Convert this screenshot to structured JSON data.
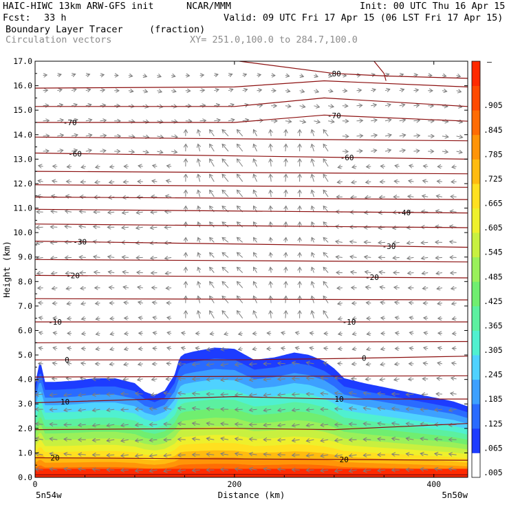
{
  "header": {
    "title": "HAIC-HIWC 13km ARW-GFS init",
    "org": "NCAR/MMM",
    "init": "Init: 00 UTC Thu 16 Apr 15",
    "fcst_label": "Fcst:",
    "fcst_value": "33 h",
    "valid": "Valid: 09 UTC Fri 17 Apr 15 (06 LST Fri 17 Apr 15)",
    "field_name": "Boundary Layer Tracer",
    "field_units": "(fraction)",
    "overlay_name": "Circulation vectors",
    "section": "XY= 251.0,100.0 to 284.7,100.0"
  },
  "colors": {
    "contour": "#8b0e0e",
    "vector": "#7d7d7d",
    "fill_base": "#ff1a00"
  },
  "chart_data": {
    "type": "heatmap",
    "title": "Boundary Layer Tracer",
    "xlabel": "Distance (km)",
    "ylabel": "Height (km)",
    "xlim": [
      0,
      434
    ],
    "ylim": [
      0,
      17
    ],
    "x_ticks": [
      0,
      200,
      400
    ],
    "y_ticks": [
      "0.0",
      "1.0",
      "2.0",
      "3.0",
      "4.0",
      "5.0",
      "6.0",
      "7.0",
      "8.0",
      "9.0",
      "10.0",
      "11.0",
      "12.0",
      "13.0",
      "14.0",
      "15.0",
      "16.0",
      "17.0"
    ],
    "x_endpoint_labels": {
      "left": "5n54w",
      "right": "5n50w"
    },
    "colorbar": {
      "labels": [
        ".005",
        ".065",
        ".125",
        ".185",
        ".245",
        ".305",
        ".365",
        ".425",
        ".485",
        ".545",
        ".605",
        ".665",
        ".725",
        ".785",
        ".845",
        ".905"
      ],
      "top_label": "–",
      "colors": [
        "#ffffff",
        "#1d3cff",
        "#2a6bff",
        "#3da0ff",
        "#4fd2ff",
        "#50f0d0",
        "#5cf0a0",
        "#70ee70",
        "#9af05a",
        "#c8f040",
        "#eef02c",
        "#ffe020",
        "#ffbb10",
        "#ff9408",
        "#ff6c04",
        "#ff4a00",
        "#ff2a00"
      ]
    },
    "tracer_top_km": {
      "x": [
        0,
        5,
        10,
        20,
        40,
        60,
        80,
        100,
        110,
        120,
        130,
        140,
        145,
        150,
        160,
        180,
        200,
        220,
        240,
        260,
        275,
        290,
        300,
        310,
        330,
        360,
        390,
        420,
        434
      ],
      "y": [
        3.8,
        4.8,
        3.9,
        3.9,
        3.95,
        4.05,
        4.05,
        3.85,
        3.5,
        3.35,
        3.55,
        4.2,
        4.9,
        5.05,
        5.15,
        5.3,
        5.25,
        4.8,
        4.9,
        5.1,
        5.0,
        4.75,
        4.45,
        4.05,
        3.85,
        3.6,
        3.35,
        3.1,
        2.9
      ]
    },
    "temperature_contours": [
      {
        "label": "20",
        "label_x": [
          20,
          310
        ],
        "x": [
          0,
          434
        ],
        "y": [
          0.8,
          0.7
        ]
      },
      {
        "label": "10",
        "label_x": [
          30,
          305
        ],
        "x": [
          0,
          120,
          200,
          300,
          434
        ],
        "y": [
          3.05,
          3.2,
          3.3,
          3.2,
          3.2
        ]
      },
      {
        "label": "0",
        "label_x": [
          32,
          330
        ],
        "x": [
          0,
          200,
          300,
          434
        ],
        "y": [
          4.8,
          4.8,
          4.85,
          4.95
        ]
      },
      {
        "label": "-10",
        "label_x": [
          20,
          315
        ],
        "x": [
          0,
          434
        ],
        "y": [
          6.35,
          6.35
        ]
      },
      {
        "label": "-20",
        "label_x": [
          38,
          338
        ],
        "x": [
          0,
          434
        ],
        "y": [
          8.25,
          8.15
        ]
      },
      {
        "label": "-30",
        "label_x": [
          45,
          355
        ],
        "x": [
          0,
          434
        ],
        "y": [
          9.65,
          9.4
        ]
      },
      {
        "label": "-40",
        "label_x": [
          370
        ],
        "x": [
          0,
          434
        ],
        "y": [
          10.95,
          10.8
        ]
      },
      {
        "label": "-60",
        "label_x": [
          40,
          313
        ],
        "x": [
          0,
          434
        ],
        "y": [
          13.25,
          13.0
        ]
      },
      {
        "label": "-70",
        "label_x": [
          35,
          300
        ],
        "x": [
          0,
          200,
          290,
          434
        ],
        "y": [
          14.5,
          14.5,
          14.8,
          14.55
        ]
      },
      {
        "label": "-80",
        "label_x": [
          300
        ],
        "x": [
          205,
          300,
          350,
          434
        ],
        "y": [
          17.0,
          16.5,
          16.4,
          16.3
        ]
      }
    ],
    "unlabeled_contours": [
      {
        "x": [
          0,
          200,
          290,
          434
        ],
        "y": [
          0.1,
          0.12,
          0.1,
          0.1
        ]
      },
      {
        "x": [
          0,
          200,
          300,
          434
        ],
        "y": [
          1.95,
          2.0,
          1.95,
          2.2
        ]
      },
      {
        "x": [
          0,
          434
        ],
        "y": [
          4.1,
          4.15
        ]
      },
      {
        "x": [
          0,
          434
        ],
        "y": [
          5.5,
          5.55
        ]
      },
      {
        "x": [
          0,
          434
        ],
        "y": [
          7.3,
          7.25
        ]
      },
      {
        "x": [
          0,
          434
        ],
        "y": [
          8.9,
          8.8
        ]
      },
      {
        "x": [
          0,
          434
        ],
        "y": [
          10.35,
          10.2
        ]
      },
      {
        "x": [
          0,
          434
        ],
        "y": [
          11.45,
          11.35
        ]
      },
      {
        "x": [
          0,
          434
        ],
        "y": [
          11.95,
          11.85
        ]
      },
      {
        "x": [
          0,
          434
        ],
        "y": [
          12.5,
          12.4
        ]
      },
      {
        "x": [
          0,
          434
        ],
        "y": [
          13.9,
          13.75
        ]
      },
      {
        "x": [
          0,
          200,
          290,
          434
        ],
        "y": [
          15.15,
          15.15,
          15.5,
          15.15
        ]
      },
      {
        "x": [
          0,
          200,
          290,
          434
        ],
        "y": [
          15.9,
          15.95,
          16.2,
          15.95
        ]
      },
      {
        "x": [
          340,
          350,
          352
        ],
        "y": [
          17.0,
          16.5,
          16.2
        ]
      }
    ]
  }
}
